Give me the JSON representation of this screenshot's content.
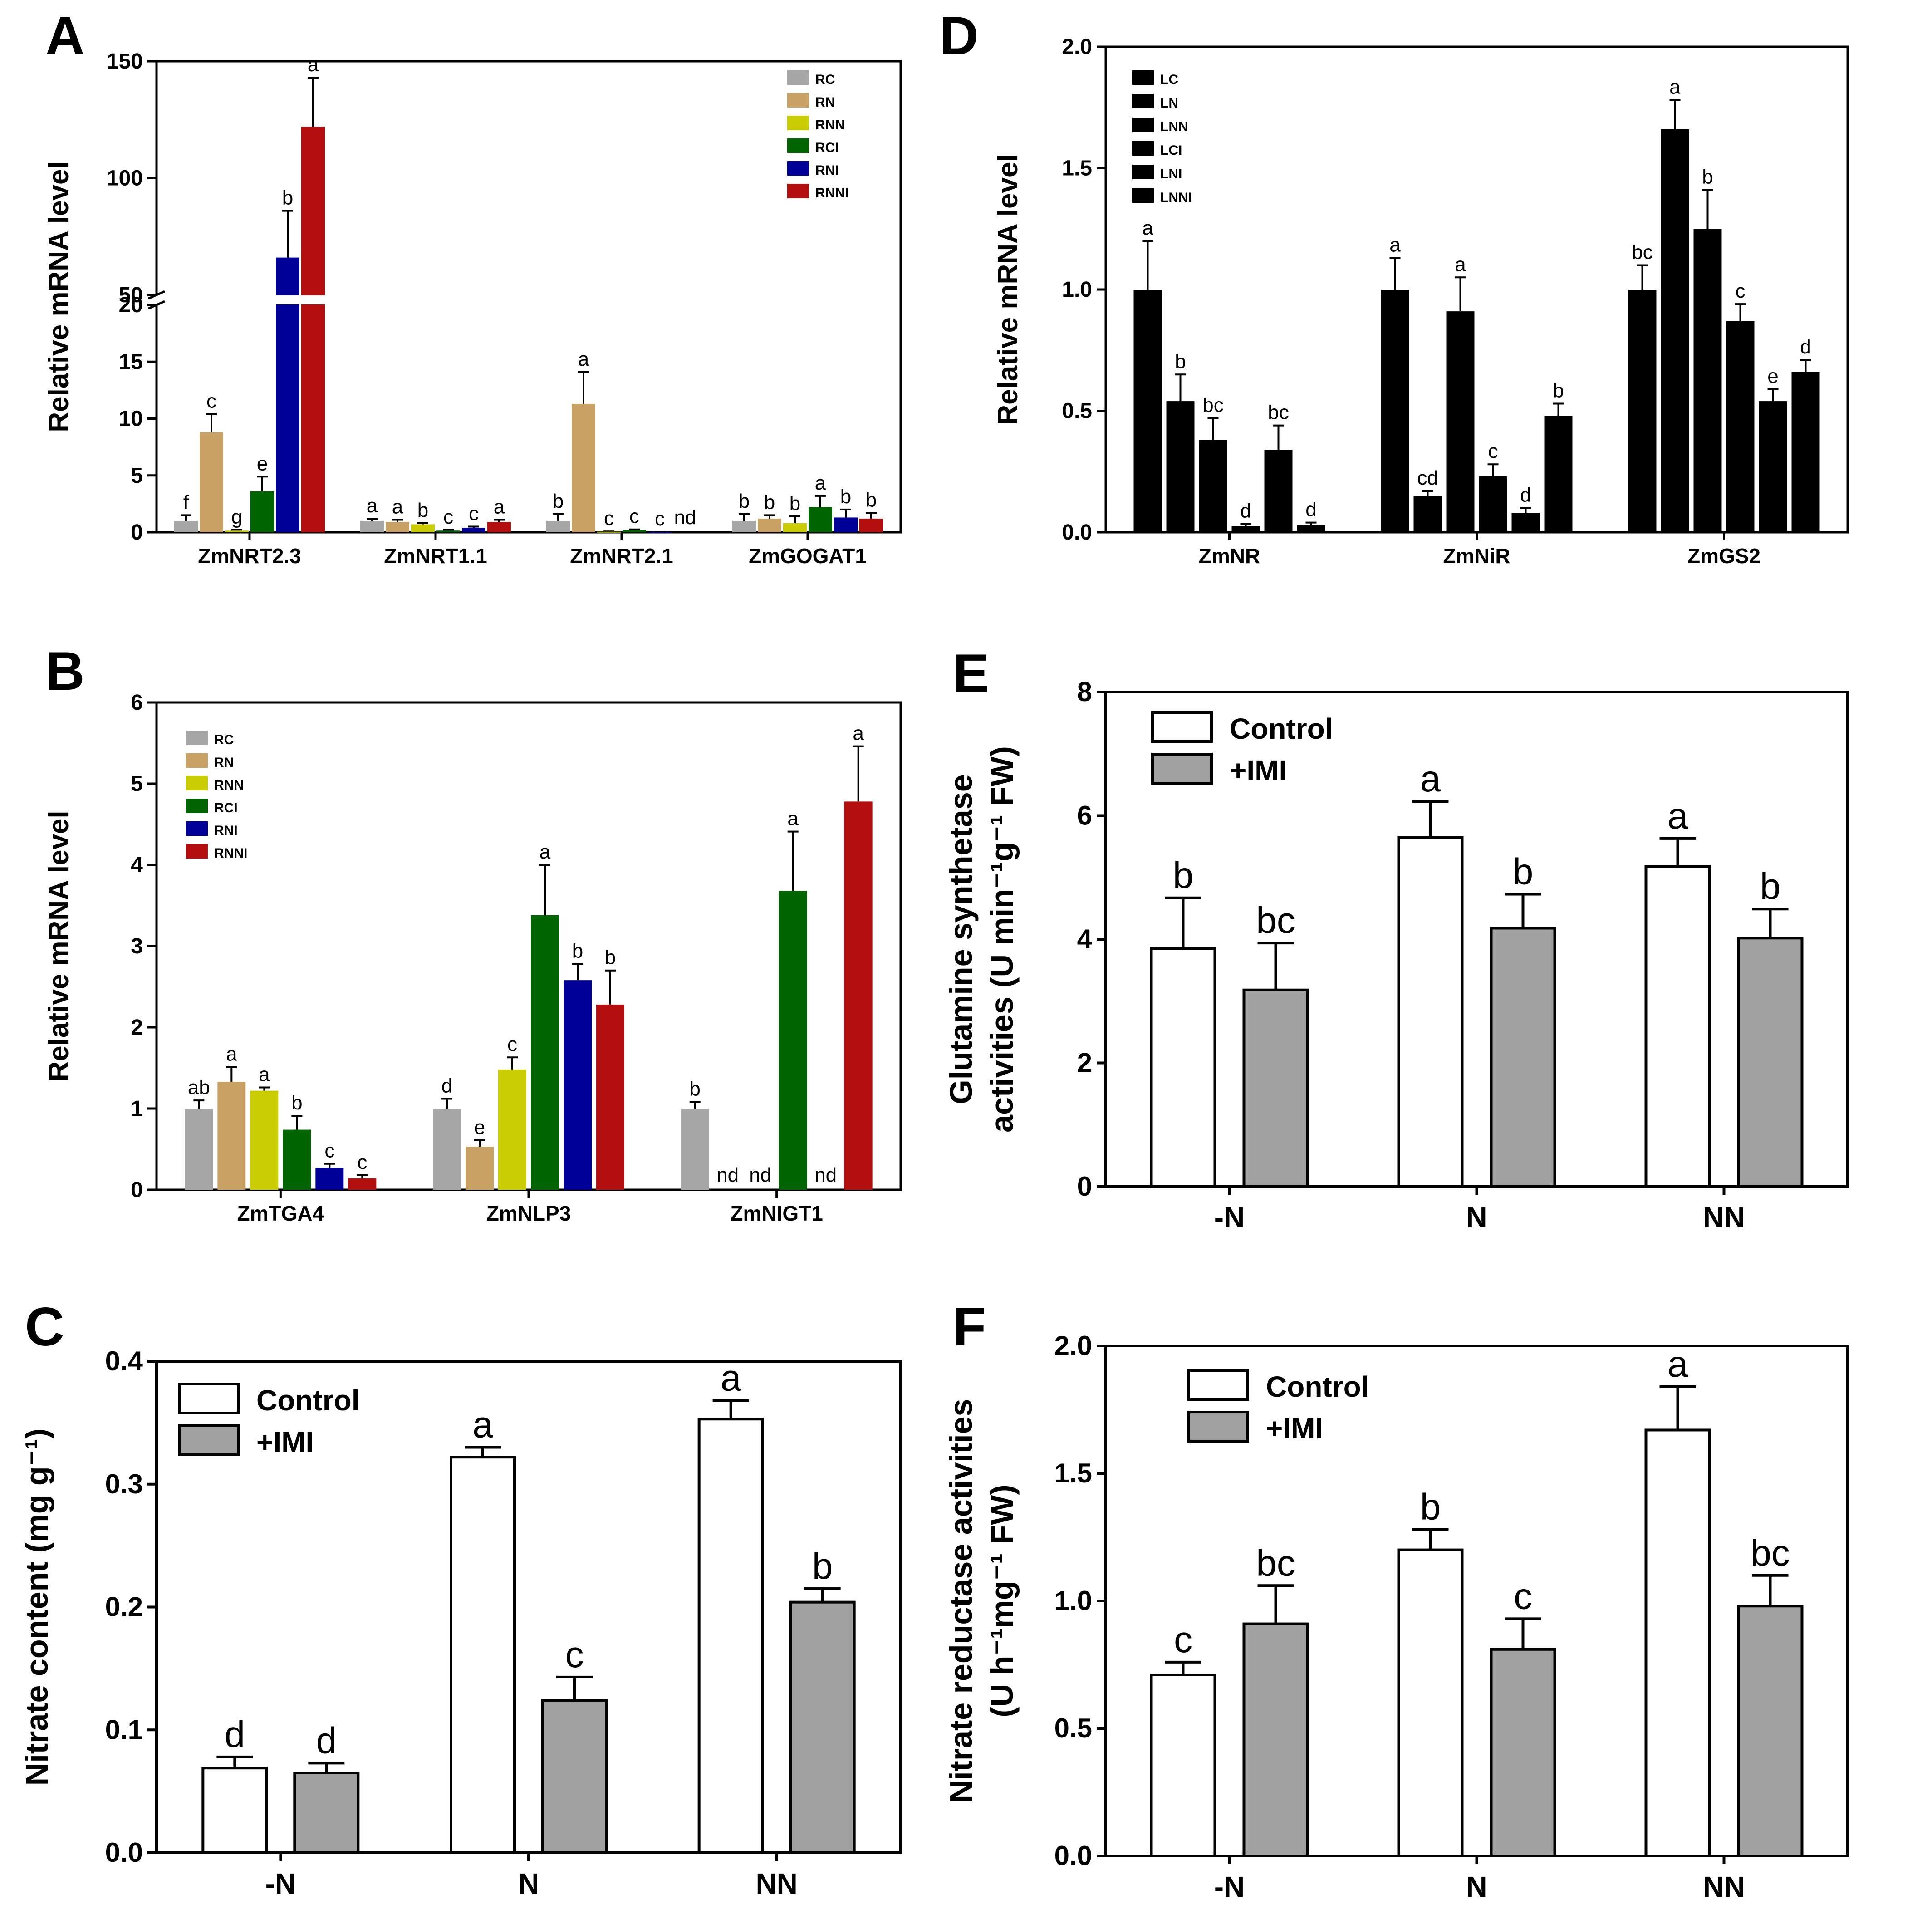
{
  "colors": {
    "RC": "#a6a6a6",
    "RN": "#c8a064",
    "RNN": "#c8cc00",
    "RCI": "#006400",
    "RNI": "#000096",
    "RNNI": "#b40f0f",
    "control": "#ffffff",
    "imi": "#a0a0a0"
  },
  "chart_data": [
    {
      "panel": "A",
      "type": "bar",
      "ylabel": "Relative mRNA level",
      "categories": [
        "ZmNRT2.3",
        "ZmNRT1.1",
        "ZmNRT2.1",
        "ZmGOGAT1"
      ],
      "legend": [
        "RC",
        "RN",
        "RNN",
        "RCI",
        "RNI",
        "RNNI"
      ],
      "ylim": [
        0,
        150
      ],
      "axis_break": [
        20,
        50
      ],
      "lower_ticks": [
        "0",
        "5",
        "10",
        "15",
        "20"
      ],
      "upper_ticks": [
        "50",
        "100",
        "150"
      ],
      "series": [
        {
          "name": "RC",
          "values": [
            1.0,
            1.0,
            1.0,
            1.0
          ],
          "errors": [
            0.5,
            0.2,
            0.6,
            0.6
          ],
          "letters": [
            "f",
            "a",
            "b",
            "b"
          ]
        },
        {
          "name": "RN",
          "values": [
            8.8,
            0.9,
            11.3,
            1.2
          ],
          "errors": [
            1.6,
            0.2,
            2.8,
            0.3
          ],
          "letters": [
            "c",
            "a",
            "a",
            "b"
          ]
        },
        {
          "name": "RNN",
          "values": [
            0.15,
            0.7,
            0.05,
            0.8
          ],
          "errors": [
            0.05,
            0.1,
            0.02,
            0.6
          ],
          "letters": [
            "g",
            "b",
            "c",
            "b"
          ]
        },
        {
          "name": "RCI",
          "values": [
            3.6,
            0.15,
            0.2,
            2.2
          ],
          "errors": [
            1.3,
            0.05,
            0.05,
            1.0
          ],
          "letters": [
            "e",
            "c",
            "c",
            "a"
          ]
        },
        {
          "name": "RNI",
          "values": [
            66,
            0.4,
            0.02,
            1.3
          ],
          "errors": [
            20,
            0.1,
            0.01,
            0.7
          ],
          "letters": [
            "b",
            "c",
            "c",
            "b"
          ]
        },
        {
          "name": "RNNI",
          "values": [
            122,
            0.9,
            null,
            1.2
          ],
          "errors": [
            21,
            0.2,
            null,
            0.5
          ],
          "letters": [
            "a",
            "a",
            "nd",
            "b"
          ]
        }
      ]
    },
    {
      "panel": "B",
      "type": "bar",
      "ylabel": "Relative mRNA level",
      "categories": [
        "ZmTGA4",
        "ZmNLP3",
        "ZmNIGT1"
      ],
      "legend": [
        "RC",
        "RN",
        "RNN",
        "RCI",
        "RNI",
        "RNNI"
      ],
      "ylim": [
        0,
        6
      ],
      "ticks": [
        "0",
        "1",
        "2",
        "3",
        "4",
        "5",
        "6"
      ],
      "series": [
        {
          "name": "RC",
          "values": [
            1.0,
            1.0,
            1.0
          ],
          "errors": [
            0.1,
            0.12,
            0.08
          ],
          "letters": [
            "ab",
            "d",
            "b"
          ]
        },
        {
          "name": "RN",
          "values": [
            1.33,
            0.53,
            null
          ],
          "errors": [
            0.18,
            0.08,
            null
          ],
          "letters": [
            "a",
            "e",
            "nd"
          ]
        },
        {
          "name": "RNN",
          "values": [
            1.22,
            1.48,
            null
          ],
          "errors": [
            0.04,
            0.15,
            null
          ],
          "letters": [
            "a",
            "c",
            "nd"
          ]
        },
        {
          "name": "RCI",
          "values": [
            0.74,
            3.38,
            3.68
          ],
          "errors": [
            0.17,
            0.62,
            0.73
          ],
          "letters": [
            "b",
            "a",
            "a"
          ]
        },
        {
          "name": "RNI",
          "values": [
            0.27,
            2.58,
            null
          ],
          "errors": [
            0.05,
            0.2,
            null
          ],
          "letters": [
            "c",
            "b",
            "nd"
          ]
        },
        {
          "name": "RNNI",
          "values": [
            0.14,
            2.28,
            4.78
          ],
          "errors": [
            0.04,
            0.42,
            0.68
          ],
          "letters": [
            "c",
            "b",
            "a"
          ]
        }
      ]
    },
    {
      "panel": "D",
      "type": "bar",
      "ylabel": "Relative mRNA level",
      "categories": [
        "ZmNR",
        "ZmNiR",
        "ZmGS2"
      ],
      "legend": [
        "LC",
        "LN",
        "LNN",
        "LCI",
        "LNI",
        "LNNI"
      ],
      "ylim": [
        0,
        2.0
      ],
      "ticks": [
        "0.0",
        "0.5",
        "1.0",
        "1.5",
        "2.0"
      ],
      "series": [
        {
          "name": "LC",
          "values": [
            1.0,
            1.0,
            1.0
          ],
          "errors": [
            0.2,
            0.13,
            0.1
          ],
          "letters": [
            "a",
            "a",
            "bc"
          ]
        },
        {
          "name": "LN",
          "values": [
            0.54,
            0.15,
            1.66
          ],
          "errors": [
            0.11,
            0.02,
            0.12
          ],
          "letters": [
            "b",
            "cd",
            "a"
          ]
        },
        {
          "name": "LNN",
          "values": [
            0.38,
            0.91,
            1.25
          ],
          "errors": [
            0.09,
            0.14,
            0.16
          ],
          "letters": [
            "bc",
            "a",
            "b"
          ]
        },
        {
          "name": "LCI",
          "values": [
            0.025,
            0.23,
            0.87
          ],
          "errors": [
            0.01,
            0.05,
            0.07
          ],
          "letters": [
            "d",
            "c",
            "c"
          ]
        },
        {
          "name": "LNI",
          "values": [
            0.34,
            0.08,
            0.54
          ],
          "errors": [
            0.1,
            0.02,
            0.05
          ],
          "letters": [
            "bc",
            "d",
            "e"
          ]
        },
        {
          "name": "LNNI",
          "values": [
            0.03,
            0.48,
            0.66
          ],
          "errors": [
            0.01,
            0.05,
            0.05
          ],
          "letters": [
            "d",
            "b",
            "d"
          ]
        }
      ]
    },
    {
      "panel": "C",
      "type": "bar",
      "ylabel": "Nitrate content (mg g⁻¹)",
      "categories": [
        "-N",
        "N",
        "NN"
      ],
      "legend": [
        "Control",
        "+IMI"
      ],
      "ylim": [
        0,
        0.4
      ],
      "ticks": [
        "0.0",
        "0.1",
        "0.2",
        "0.3",
        "0.4"
      ],
      "series": [
        {
          "name": "Control",
          "values": [
            0.069,
            0.322,
            0.353
          ],
          "errors": [
            0.009,
            0.008,
            0.015
          ],
          "letters": [
            "d",
            "a",
            "a"
          ]
        },
        {
          "name": "+IMI",
          "values": [
            0.065,
            0.124,
            0.204
          ],
          "errors": [
            0.008,
            0.019,
            0.011
          ],
          "letters": [
            "d",
            "c",
            "b"
          ]
        }
      ]
    },
    {
      "panel": "E",
      "type": "bar",
      "ylabel": [
        "Glutamine synthetase",
        "activities (U min⁻¹g⁻¹ FW)"
      ],
      "categories": [
        "-N",
        "N",
        "NN"
      ],
      "legend": [
        "Control",
        "+IMI"
      ],
      "ylim": [
        0,
        8
      ],
      "ticks": [
        "0",
        "2",
        "4",
        "6",
        "8"
      ],
      "series": [
        {
          "name": "Control",
          "values": [
            3.85,
            5.65,
            5.18
          ],
          "errors": [
            0.82,
            0.58,
            0.45
          ],
          "letters": [
            "b",
            "a",
            "a"
          ]
        },
        {
          "name": "+IMI",
          "values": [
            3.18,
            4.18,
            4.02
          ],
          "errors": [
            0.76,
            0.55,
            0.47
          ],
          "letters": [
            "bc",
            "b",
            "b"
          ]
        }
      ]
    },
    {
      "panel": "F",
      "type": "bar",
      "ylabel": [
        "Nitrate reductase activities",
        "(U h⁻¹mg⁻¹ FW)"
      ],
      "categories": [
        "-N",
        "N",
        "NN"
      ],
      "legend": [
        "Control",
        "+IMI"
      ],
      "ylim": [
        0,
        2.0
      ],
      "ticks": [
        "0.0",
        "0.5",
        "1.0",
        "1.5",
        "2.0"
      ],
      "series": [
        {
          "name": "Control",
          "values": [
            0.71,
            1.2,
            1.67
          ],
          "errors": [
            0.05,
            0.08,
            0.17
          ],
          "letters": [
            "c",
            "b",
            "a"
          ]
        },
        {
          "name": "+IMI",
          "values": [
            0.91,
            0.81,
            0.98
          ],
          "errors": [
            0.15,
            0.12,
            0.12
          ],
          "letters": [
            "bc",
            "c",
            "bc"
          ]
        }
      ]
    }
  ]
}
